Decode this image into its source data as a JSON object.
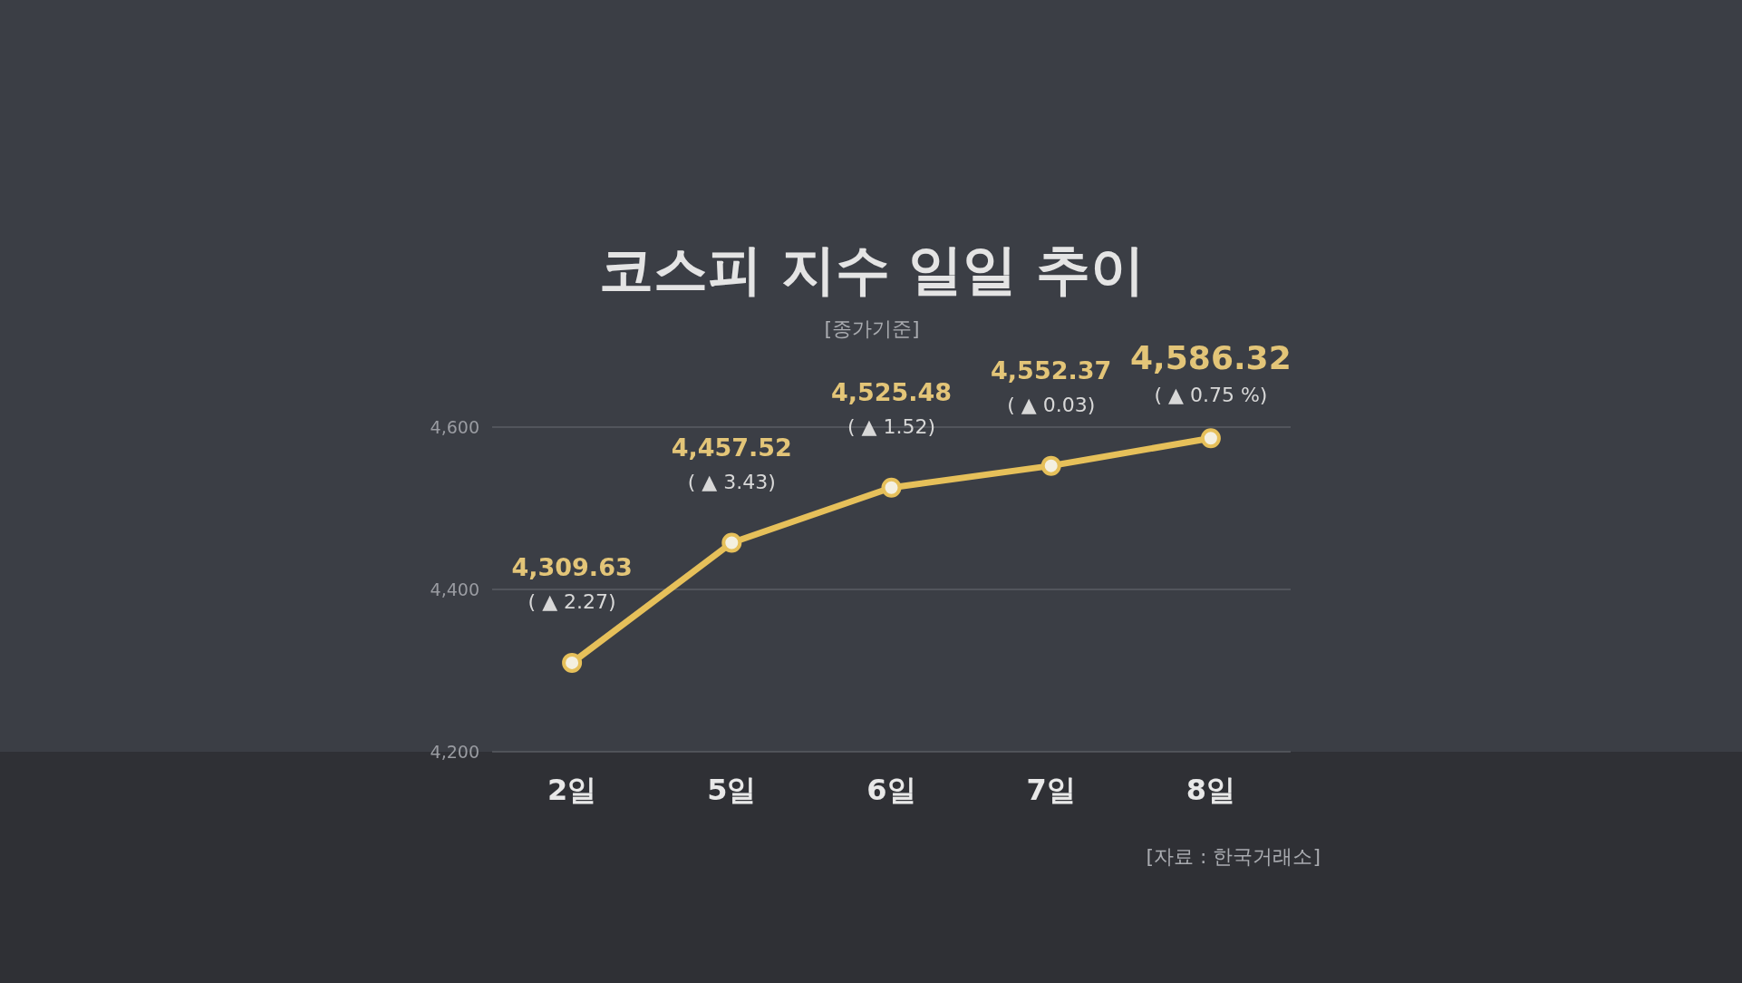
{
  "chart_data": {
    "type": "line",
    "title": "코스피 지수 일일 추이",
    "subtitle": "[종가기준]",
    "categories": [
      "2일",
      "5일",
      "6일",
      "7일",
      "8일"
    ],
    "series": [
      {
        "color": "#e6c05a",
        "values": [
          4309.63,
          4457.52,
          4525.48,
          4552.37,
          4586.32
        ],
        "value_labels": [
          "4,309.63",
          "4,457.52",
          "4,525.48",
          "4,552.37",
          "4,586.32"
        ]
      }
    ],
    "ylim": [
      4200,
      4600
    ],
    "yticks": [
      {
        "value": 4200,
        "label": "4,200"
      },
      {
        "value": 4400,
        "label": "4,400"
      },
      {
        "value": 4600,
        "label": "4,600"
      }
    ],
    "grid": "y",
    "marker": "circle",
    "annotations": [
      {
        "text": "( ▲ 2.27)",
        "x": "2일",
        "y": 4309.63
      },
      {
        "text": "( ▲ 3.43)",
        "x": "5일",
        "y": 4457.52
      },
      {
        "text": "( ▲ 1.52)",
        "x": "6일",
        "y": 4525.48
      },
      {
        "text": "( ▲ 0.03)",
        "x": "7일",
        "y": 4552.37
      },
      {
        "text": "( ▲ 0.75 %)",
        "x": "8일",
        "y": 4586.32
      },
      "[자료 : 한국거래소]"
    ]
  }
}
